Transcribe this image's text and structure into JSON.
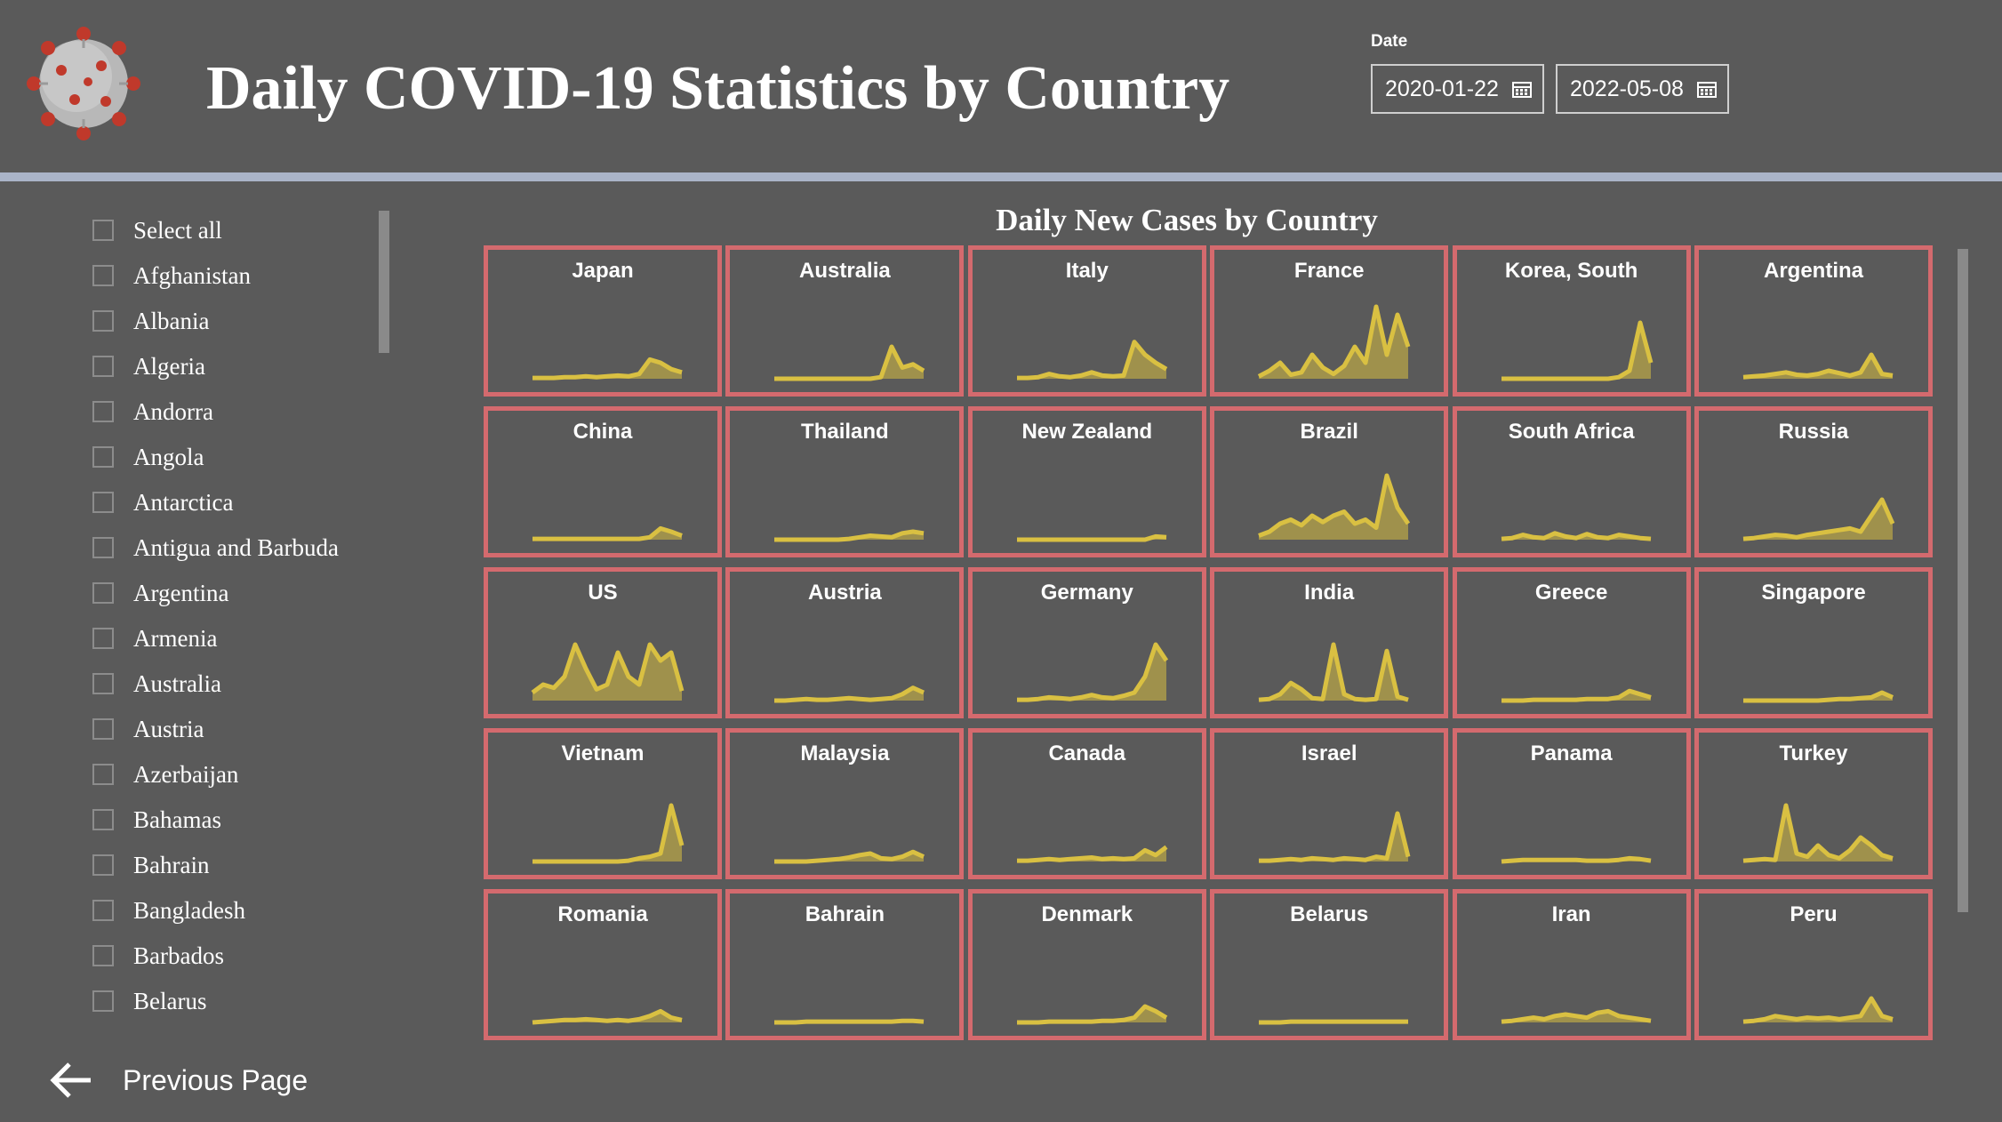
{
  "header": {
    "title": "Daily COVID-19 Statistics by Country",
    "date_label": "Date",
    "date_start": "2020-01-22",
    "date_end": "2022-05-08"
  },
  "slicer": {
    "items": [
      "Select all",
      "Afghanistan",
      "Albania",
      "Algeria",
      "Andorra",
      "Angola",
      "Antarctica",
      "Antigua and Barbuda",
      "Argentina",
      "Armenia",
      "Australia",
      "Austria",
      "Azerbaijan",
      "Bahamas",
      "Bahrain",
      "Bangladesh",
      "Barbados",
      "Belarus"
    ]
  },
  "chart": {
    "title": "Daily New Cases by Country",
    "line_color": "#d9c042",
    "border_color": "#d46a6e",
    "countries": [
      {
        "name": "Japan",
        "shape": [
          1,
          1,
          1,
          2,
          2,
          3,
          2,
          3,
          4,
          3,
          6,
          24,
          20,
          12,
          8
        ]
      },
      {
        "name": "Australia",
        "shape": [
          0,
          0,
          0,
          0,
          0,
          0,
          0,
          0,
          0,
          0,
          2,
          40,
          14,
          18,
          10
        ]
      },
      {
        "name": "Italy",
        "shape": [
          1,
          1,
          2,
          6,
          3,
          2,
          4,
          8,
          4,
          3,
          4,
          46,
          30,
          20,
          12
        ]
      },
      {
        "name": "France",
        "shape": [
          3,
          10,
          20,
          5,
          8,
          30,
          14,
          6,
          16,
          40,
          20,
          90,
          30,
          80,
          40
        ]
      },
      {
        "name": "Korea, South",
        "shape": [
          0,
          0,
          0,
          0,
          0,
          0,
          0,
          0,
          0,
          0,
          0,
          2,
          10,
          70,
          20
        ]
      },
      {
        "name": "Argentina",
        "shape": [
          2,
          3,
          4,
          6,
          8,
          5,
          4,
          6,
          10,
          7,
          4,
          8,
          30,
          6,
          4
        ]
      },
      {
        "name": "China",
        "shape": [
          1,
          1,
          1,
          1,
          1,
          1,
          1,
          1,
          1,
          1,
          1,
          3,
          14,
          10,
          5
        ]
      },
      {
        "name": "Thailand",
        "shape": [
          0,
          0,
          0,
          0,
          0,
          0,
          0,
          1,
          3,
          5,
          4,
          3,
          8,
          10,
          8
        ]
      },
      {
        "name": "New Zealand",
        "shape": [
          0,
          0,
          0,
          0,
          0,
          0,
          0,
          0,
          0,
          0,
          0,
          0,
          0,
          4,
          3
        ]
      },
      {
        "name": "Brazil",
        "shape": [
          5,
          10,
          20,
          25,
          18,
          30,
          22,
          30,
          35,
          20,
          25,
          15,
          80,
          40,
          20
        ]
      },
      {
        "name": "South Africa",
        "shape": [
          1,
          2,
          6,
          3,
          2,
          8,
          4,
          2,
          7,
          3,
          2,
          6,
          4,
          2,
          1
        ]
      },
      {
        "name": "Russia",
        "shape": [
          1,
          2,
          4,
          6,
          5,
          3,
          6,
          8,
          10,
          12,
          14,
          10,
          30,
          50,
          20
        ]
      },
      {
        "name": "US",
        "shape": [
          10,
          20,
          16,
          30,
          70,
          40,
          14,
          20,
          60,
          30,
          20,
          70,
          50,
          60,
          12
        ]
      },
      {
        "name": "Austria",
        "shape": [
          0,
          0,
          1,
          2,
          1,
          1,
          2,
          3,
          2,
          1,
          2,
          3,
          8,
          16,
          10
        ]
      },
      {
        "name": "Germany",
        "shape": [
          1,
          1,
          2,
          4,
          3,
          2,
          4,
          7,
          4,
          3,
          6,
          10,
          30,
          70,
          50
        ]
      },
      {
        "name": "India",
        "shape": [
          1,
          2,
          8,
          22,
          14,
          3,
          2,
          70,
          8,
          2,
          1,
          2,
          62,
          5,
          1
        ]
      },
      {
        "name": "Greece",
        "shape": [
          0,
          0,
          0,
          1,
          1,
          1,
          1,
          1,
          2,
          2,
          2,
          4,
          12,
          8,
          4
        ]
      },
      {
        "name": "Singapore",
        "shape": [
          0,
          0,
          0,
          0,
          0,
          0,
          0,
          0,
          1,
          2,
          2,
          3,
          4,
          10,
          4
        ]
      },
      {
        "name": "Vietnam",
        "shape": [
          0,
          0,
          0,
          0,
          0,
          0,
          0,
          0,
          0,
          1,
          4,
          6,
          10,
          70,
          20
        ]
      },
      {
        "name": "Malaysia",
        "shape": [
          0,
          0,
          0,
          0,
          1,
          2,
          3,
          5,
          8,
          10,
          4,
          3,
          6,
          12,
          6
        ]
      },
      {
        "name": "Canada",
        "shape": [
          1,
          1,
          2,
          3,
          2,
          3,
          4,
          5,
          3,
          4,
          3,
          4,
          14,
          8,
          18
        ]
      },
      {
        "name": "Israel",
        "shape": [
          1,
          1,
          2,
          3,
          2,
          4,
          3,
          2,
          4,
          3,
          2,
          6,
          4,
          60,
          6
        ]
      },
      {
        "name": "Panama",
        "shape": [
          0,
          1,
          2,
          2,
          2,
          2,
          2,
          2,
          1,
          1,
          1,
          2,
          4,
          3,
          1
        ]
      },
      {
        "name": "Turkey",
        "shape": [
          1,
          2,
          3,
          2,
          70,
          10,
          6,
          20,
          8,
          4,
          14,
          30,
          20,
          8,
          4
        ]
      },
      {
        "name": "Romania",
        "shape": [
          0,
          1,
          2,
          3,
          3,
          4,
          3,
          2,
          3,
          2,
          4,
          8,
          14,
          6,
          3
        ]
      },
      {
        "name": "Bahrain",
        "shape": [
          0,
          0,
          0,
          1,
          1,
          1,
          1,
          1,
          1,
          1,
          1,
          1,
          2,
          2,
          1
        ]
      },
      {
        "name": "Denmark",
        "shape": [
          0,
          0,
          0,
          1,
          1,
          1,
          1,
          1,
          2,
          2,
          3,
          6,
          20,
          14,
          6
        ]
      },
      {
        "name": "Belarus",
        "shape": [
          0,
          0,
          0,
          1,
          1,
          1,
          1,
          1,
          1,
          1,
          1,
          1,
          1,
          1,
          1
        ]
      },
      {
        "name": "Iran",
        "shape": [
          1,
          2,
          4,
          6,
          4,
          8,
          10,
          8,
          6,
          12,
          14,
          8,
          6,
          4,
          2
        ]
      },
      {
        "name": "Peru",
        "shape": [
          1,
          2,
          4,
          8,
          6,
          4,
          6,
          5,
          6,
          4,
          6,
          8,
          30,
          8,
          4
        ]
      }
    ]
  },
  "footer": {
    "prev_label": "Previous Page"
  }
}
